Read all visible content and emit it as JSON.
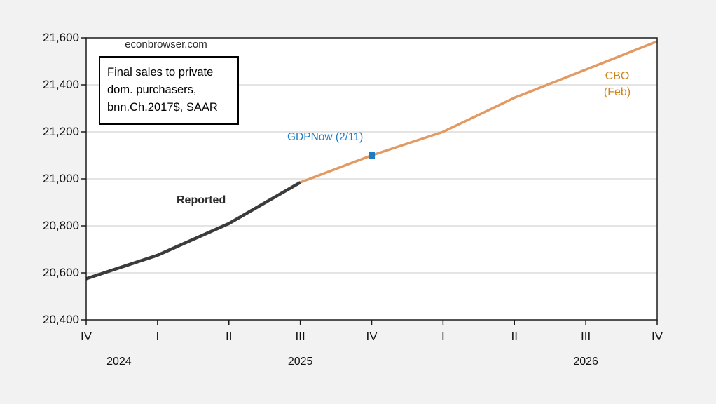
{
  "background_color": "#f2f2f2",
  "plot_background_color": "#ffffff",
  "frame_color": "#1a1a1a",
  "gridline_color": "#c9c9c9",
  "watermark": {
    "text": "econbrowser.com"
  },
  "annotation_box": {
    "text": "Final sales to private\ndom. purchasers,\nbnn.Ch.2017$, SAAR"
  },
  "series_labels": {
    "reported": {
      "text": "Reported",
      "color": "#2b2b2b"
    },
    "gdpnow": {
      "text": "GDPNow (2/11)",
      "color": "#1b7ec4"
    },
    "cbo": {
      "text": "CBO\n(Feb)",
      "color": "#cf861c"
    }
  },
  "chart_data": {
    "type": "line",
    "title": "Final sales to private dom. purchasers, bnn.Ch.2017$, SAAR",
    "source_watermark": "econbrowser.com",
    "x_categories": [
      "2024Q4",
      "2025Q1",
      "2025Q2",
      "2025Q3",
      "2025Q4",
      "2026Q1",
      "2026Q2",
      "2026Q3",
      "2026Q4"
    ],
    "x_tick_labels": [
      "IV",
      "I",
      "II",
      "III",
      "IV",
      "I",
      "II",
      "III",
      "IV"
    ],
    "year_labels": [
      {
        "text": "2024",
        "position": 0.46
      },
      {
        "text": "2025",
        "position": 3
      },
      {
        "text": "2026",
        "position": 7
      }
    ],
    "ylim": [
      20400,
      21600
    ],
    "grid": "horizontal",
    "legend_position": "inline-annotations",
    "y_ticks": [
      {
        "value": 21600,
        "label": "21,600"
      },
      {
        "value": 21400,
        "label": "21,400"
      },
      {
        "value": 21200,
        "label": "21,200"
      },
      {
        "value": 21000,
        "label": "21,000"
      },
      {
        "value": 20800,
        "label": "20,800"
      },
      {
        "value": 20600,
        "label": "20,600"
      },
      {
        "value": 20400,
        "label": "20,400"
      }
    ],
    "series": [
      {
        "name": "Reported",
        "color": "#3b3b3b",
        "stroke_width": 4.5,
        "values": [
          20575,
          20675,
          20810,
          20985,
          null,
          null,
          null,
          null,
          null
        ]
      },
      {
        "name": "CBO (Feb)",
        "color": "#e39a62",
        "stroke_width": 3.5,
        "values": [
          null,
          null,
          null,
          20985,
          21100,
          21200,
          21345,
          21465,
          21585
        ]
      }
    ],
    "points": [
      {
        "name": "GDPNow (2/11)",
        "category": "2025Q4",
        "index": 4,
        "value": 21100,
        "color": "#1b7ec4",
        "marker": "square",
        "size": 9
      }
    ]
  }
}
